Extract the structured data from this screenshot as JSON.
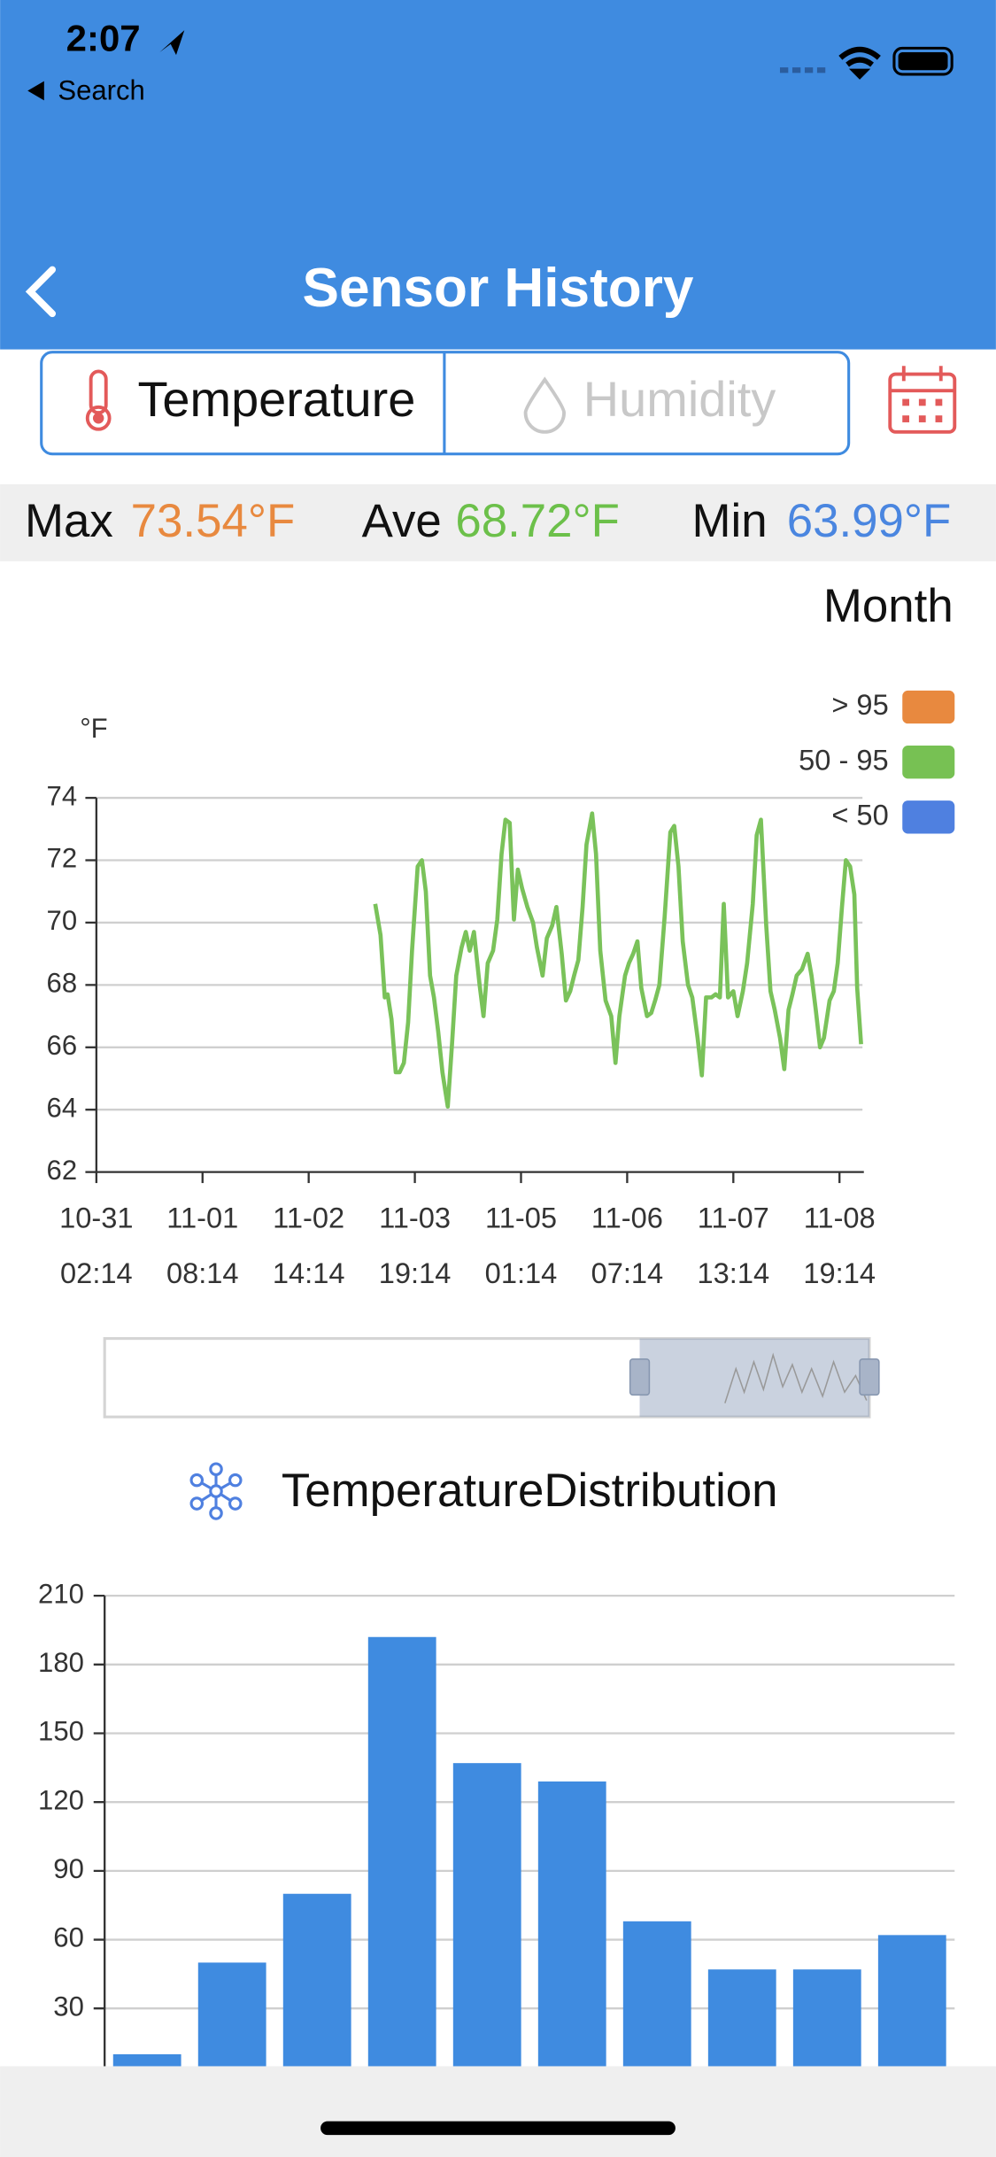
{
  "status_bar": {
    "time": "2:07",
    "back_label": "Search"
  },
  "nav": {
    "title": "Sensor History"
  },
  "tabs": [
    "Temperature",
    "Humidity"
  ],
  "stats": {
    "max_label": "Max",
    "max_value": "73.54°F",
    "ave_label": "Ave",
    "ave_value": "68.72°F",
    "min_label": "Min",
    "min_value": "63.99°F"
  },
  "range_label": "Month",
  "line_chart": {
    "type": "line",
    "y_unit": "°F",
    "legend": [
      {
        "name": "> 95",
        "color": "#e8893f"
      },
      {
        "name": "50 - 95",
        "color": "#77c153"
      },
      {
        "name": "< 50",
        "color": "#4f80e0"
      }
    ],
    "xlim": [
      0,
      216.5
    ],
    "xticks": [
      {
        "value": 0,
        "label": [
          "10-31",
          "02:14"
        ]
      },
      {
        "value": 30,
        "label": [
          "11-01",
          "08:14"
        ]
      },
      {
        "value": 60,
        "label": [
          "11-02",
          "14:14"
        ]
      },
      {
        "value": 90,
        "label": [
          "11-03",
          "19:14"
        ]
      },
      {
        "value": 120,
        "label": [
          "11-05",
          "01:14"
        ]
      },
      {
        "value": 150,
        "label": [
          "11-06",
          "07:14"
        ]
      },
      {
        "value": 180,
        "label": [
          "11-07",
          "13:14"
        ]
      },
      {
        "value": 210,
        "label": [
          "11-08",
          "19:14"
        ]
      }
    ],
    "ylim": [
      62,
      74
    ],
    "yticks": [
      62,
      64,
      66,
      68,
      70,
      72,
      74
    ],
    "grid": true,
    "series": [
      {
        "color": "#7ac25a",
        "x": [
          78.8,
          80.3,
          81.5,
          82.3,
          83.4,
          84.6,
          85.7,
          86.9,
          88.1,
          89.2,
          90.8,
          92.0,
          93.1,
          94.3,
          95.4,
          96.6,
          97.8,
          99.3,
          100.5,
          101.7,
          103.2,
          104.4,
          105.5,
          106.7,
          108.3,
          109.4,
          110.6,
          112.1,
          113.3,
          114.5,
          115.6,
          116.8,
          118.0,
          119.1,
          120.3,
          121.8,
          123.4,
          124.5,
          126.1,
          127.3,
          128.8,
          130.0,
          131.5,
          132.7,
          133.9,
          135.0,
          136.2,
          137.4,
          138.5,
          140.1,
          141.2,
          142.4,
          143.9,
          145.5,
          146.7,
          147.8,
          149.4,
          150.5,
          151.7,
          152.9,
          154.0,
          155.6,
          156.8,
          157.9,
          159.1,
          160.6,
          162.2,
          163.3,
          164.5,
          165.7,
          167.2,
          168.4,
          169.9,
          171.1,
          172.3,
          173.8,
          175.0,
          176.2,
          177.3,
          178.5,
          180.0,
          181.2,
          182.7,
          183.9,
          185.5,
          186.6,
          187.8,
          189.3,
          190.5,
          191.7,
          193.2,
          194.4,
          195.6,
          196.7,
          197.9,
          199.4,
          201.0,
          202.1,
          203.3,
          204.5,
          205.6,
          207.2,
          208.4,
          209.5,
          210.7,
          211.8,
          213.0,
          214.2,
          215.0,
          216.1
        ],
        "values": [
          70.6,
          69.6,
          67.6,
          67.7,
          66.9,
          65.2,
          65.2,
          65.5,
          66.8,
          69.1,
          71.8,
          72.0,
          71.0,
          68.3,
          67.6,
          66.5,
          65.2,
          64.1,
          66.1,
          68.3,
          69.2,
          69.7,
          69.1,
          69.7,
          68.0,
          67.0,
          68.7,
          69.1,
          70.1,
          72.2,
          73.3,
          73.2,
          70.1,
          71.7,
          71.1,
          70.5,
          70.0,
          69.2,
          68.3,
          69.5,
          69.9,
          70.5,
          69.0,
          67.5,
          67.8,
          68.3,
          68.8,
          70.5,
          72.5,
          73.5,
          72.2,
          69.1,
          67.5,
          67.0,
          65.5,
          67.0,
          68.3,
          68.7,
          69.0,
          69.4,
          67.9,
          67.0,
          67.1,
          67.5,
          68.0,
          70.2,
          72.9,
          73.1,
          71.8,
          69.4,
          68.0,
          67.6,
          66.3,
          65.1,
          67.6,
          67.6,
          67.7,
          67.6,
          70.6,
          67.6,
          67.8,
          67.0,
          67.8,
          68.7,
          70.6,
          72.8,
          73.3,
          69.9,
          67.8,
          67.2,
          66.3,
          65.3,
          67.2,
          67.7,
          68.3,
          68.5,
          69.0,
          68.3,
          67.2,
          66.0,
          66.3,
          67.5,
          67.8,
          68.7,
          70.5,
          72.0,
          71.8,
          70.9,
          67.9,
          66.1
        ]
      }
    ]
  },
  "distribution_chart": {
    "type": "bar",
    "title": "TemperatureDistribution",
    "categories": [
      null,
      null,
      null,
      null,
      null,
      null,
      null,
      null,
      null,
      null
    ],
    "values": [
      10,
      50,
      80,
      192,
      137,
      129,
      68,
      47,
      47,
      62
    ],
    "color": "#3f8be0",
    "ylim": [
      0,
      210
    ],
    "yticks": [
      30,
      60,
      90,
      120,
      150,
      180,
      210
    ],
    "grid": true
  }
}
